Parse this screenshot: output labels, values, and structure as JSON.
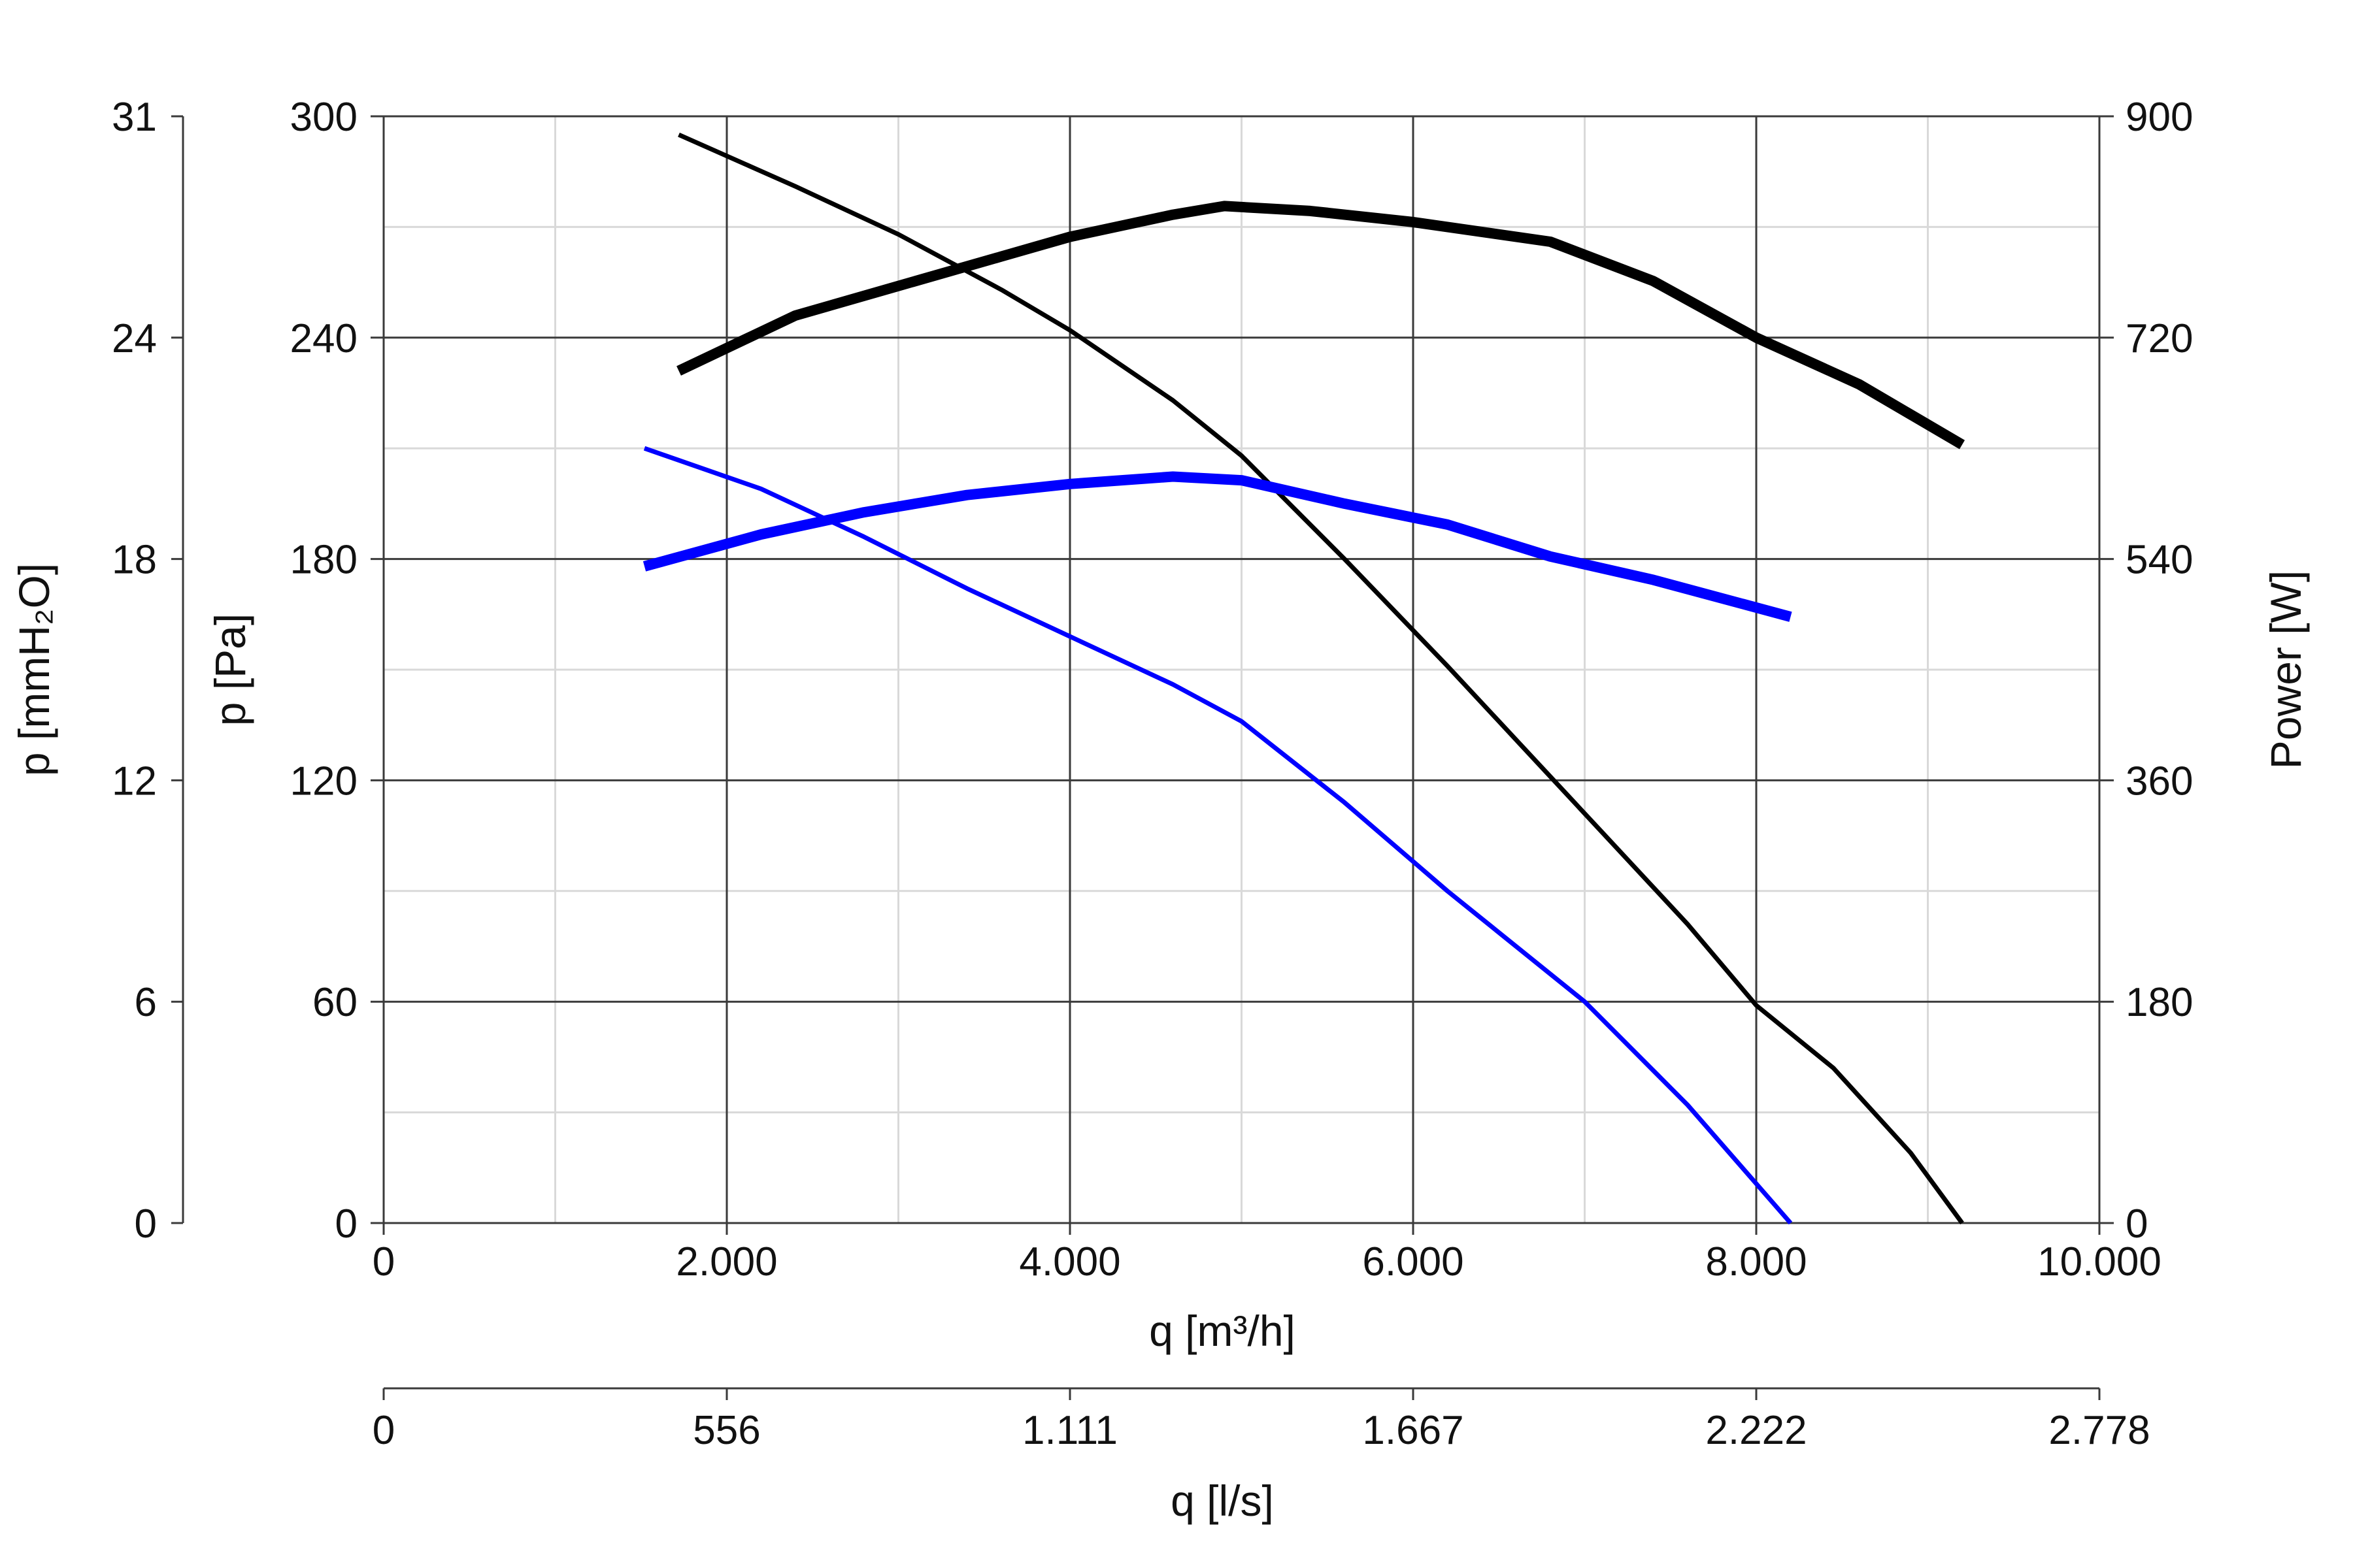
{
  "chart_data": {
    "type": "line",
    "x_axis": {
      "label": "q [m³/h]",
      "range": [
        0,
        10000
      ],
      "ticks": [
        0,
        2000,
        4000,
        6000,
        8000,
        10000
      ],
      "tick_labels": [
        "0",
        "2.000",
        "4.000",
        "6.000",
        "8.000",
        "10.000"
      ]
    },
    "x_axis_secondary": {
      "label": "q [l/s]",
      "range": [
        0,
        2778
      ],
      "tick_labels": [
        "0",
        "556",
        "1.111",
        "1.667",
        "2.222",
        "2.778"
      ]
    },
    "y_axis_left": {
      "label": "p [Pa]",
      "range": [
        0,
        300
      ],
      "ticks": [
        0,
        60,
        120,
        180,
        240,
        300
      ],
      "tick_labels": [
        "0",
        "60",
        "120",
        "180",
        "240",
        "300"
      ]
    },
    "y_axis_left_outer": {
      "label": "p [mmH₂O]",
      "range": [
        0,
        31
      ],
      "tick_labels": [
        "0",
        "6",
        "12",
        "18",
        "24",
        "31"
      ]
    },
    "y_axis_right": {
      "label": "Power [W]",
      "range": [
        0,
        900
      ],
      "ticks": [
        0,
        180,
        360,
        540,
        720,
        900
      ],
      "tick_labels": [
        "0",
        "180",
        "360",
        "540",
        "720",
        "900"
      ]
    },
    "grid": true,
    "series": [
      {
        "axis": "pressure",
        "color": "#000000",
        "weight": "thin",
        "x": [
          1720,
          2400,
          3000,
          3600,
          4000,
          4600,
          5000,
          5600,
          6200,
          7000,
          7600,
          8000,
          8450,
          8900,
          9200
        ],
        "y": [
          295,
          281,
          268,
          253,
          242,
          223,
          208,
          180,
          151,
          111,
          81,
          59,
          42,
          19,
          0
        ]
      },
      {
        "axis": "pressure",
        "color": "#0000ff",
        "weight": "thin",
        "x": [
          1520,
          2200,
          2800,
          3400,
          4000,
          4600,
          5000,
          5600,
          6200,
          7000,
          7600,
          8200
        ],
        "y": [
          210,
          199,
          186,
          172,
          159,
          146,
          136,
          114,
          90,
          60,
          32,
          0
        ]
      },
      {
        "axis": "power",
        "color": "#000000",
        "weight": "thick",
        "x": [
          1720,
          2400,
          3000,
          3600,
          4000,
          4600,
          4900,
          5400,
          6000,
          6800,
          7400,
          8000,
          8600,
          9200
        ],
        "y": [
          693,
          738,
          762,
          786,
          802,
          820,
          827,
          823,
          814,
          798,
          766,
          720,
          682,
          633
        ]
      },
      {
        "axis": "power",
        "color": "#0000ff",
        "weight": "thick",
        "x": [
          1520,
          2200,
          2800,
          3400,
          4000,
          4600,
          5000,
          5600,
          6200,
          6800,
          7400,
          8200
        ],
        "y": [
          534,
          560,
          578,
          592,
          601,
          607,
          604,
          585,
          568,
          542,
          523,
          493
        ]
      }
    ]
  }
}
